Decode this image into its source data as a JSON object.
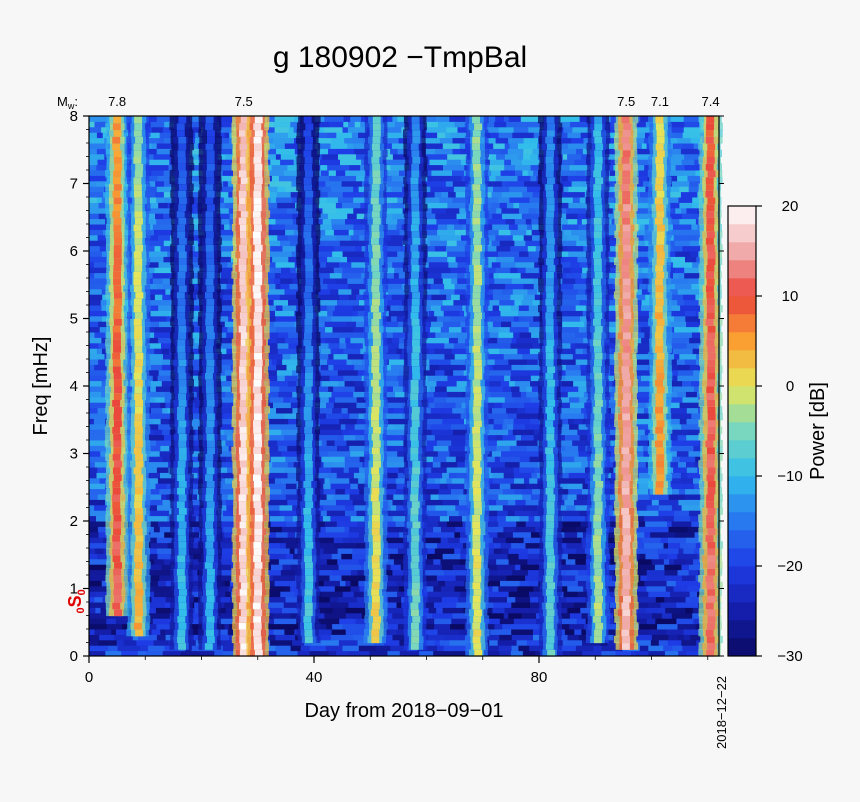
{
  "chart_data": {
    "type": "heatmap",
    "title": "g 180902 −TmpBal",
    "xlabel": "Day from 2018−09−01",
    "ylabel": "Freq [mHz]",
    "xlim": [
      0,
      112
    ],
    "ylim": [
      0,
      8
    ],
    "x_ticks": [
      0,
      40,
      80
    ],
    "x_tick_labels": [
      "0",
      "40",
      "80"
    ],
    "y_ticks": [
      0,
      1,
      2,
      3,
      4,
      5,
      6,
      7,
      8
    ],
    "y_tick_labels": [
      "0",
      "1",
      "2",
      "3",
      "4",
      "5",
      "6",
      "7",
      "8"
    ],
    "end_date_label": "2018−12−22",
    "mode_label": {
      "text_main": "S",
      "prefix": "0",
      "subscript": "0",
      "freq_mhz": 0.81,
      "color": "#e00000"
    },
    "magnitudes": {
      "label_main": "M",
      "label_sub": "w",
      "label_suffix": ":",
      "events": [
        {
          "day": 5.0,
          "mw": "7.8"
        },
        {
          "day": 27.5,
          "mw": "7.5"
        },
        {
          "day": 95.5,
          "mw": "7.5"
        },
        {
          "day": 101.5,
          "mw": "7.1"
        },
        {
          "day": 110.5,
          "mw": "7.4"
        }
      ]
    },
    "colorbar": {
      "label": "Power [dB]",
      "range": [
        -30,
        20
      ],
      "ticks": [
        20,
        10,
        0,
        -10,
        -20,
        -30
      ],
      "tick_labels": [
        "20",
        "10",
        "0",
        "−10",
        "−20",
        "−30"
      ],
      "colormap": "jet-like (navy → blue → cyan → green → yellow → orange → red → pink → white)"
    },
    "background_level_db": -20,
    "bright_columns": [
      {
        "day": 5.0,
        "peak_db": 14,
        "fmin": 0.6,
        "decay": 0.09
      },
      {
        "day": 8.8,
        "peak_db": 6,
        "fmin": 0.3,
        "decay": 0.1
      },
      {
        "day": 16.5,
        "peak_db": -7,
        "fmin": 0.1,
        "decay": 0.12
      },
      {
        "day": 21.5,
        "peak_db": -8,
        "fmin": 0.1,
        "decay": 0.12
      },
      {
        "day": 27.5,
        "peak_db": 20,
        "fmin": 0.0,
        "decay": 0.02
      },
      {
        "day": 30.0,
        "peak_db": 20,
        "fmin": 0.0,
        "decay": 0.0
      },
      {
        "day": 39.0,
        "peak_db": -6,
        "fmin": 0.2,
        "decay": 0.15
      },
      {
        "day": 51.0,
        "peak_db": 4,
        "fmin": 0.2,
        "decay": 0.12
      },
      {
        "day": 58.0,
        "peak_db": -3,
        "fmin": 0.1,
        "decay": 0.12
      },
      {
        "day": 69.0,
        "peak_db": 2,
        "fmin": 0.0,
        "decay": 0.06
      },
      {
        "day": 82.0,
        "peak_db": -5,
        "fmin": 0.0,
        "decay": 0.1
      },
      {
        "day": 90.5,
        "peak_db": 0,
        "fmin": 0.2,
        "decay": 0.12
      },
      {
        "day": 95.5,
        "peak_db": 18,
        "fmin": 0.1,
        "decay": 0.05
      },
      {
        "day": 101.5,
        "peak_db": 10,
        "fmin": 2.4,
        "decay": 0.1
      },
      {
        "day": 110.5,
        "peak_db": 14,
        "fmin": 0.0,
        "decay": 0.04
      }
    ]
  }
}
